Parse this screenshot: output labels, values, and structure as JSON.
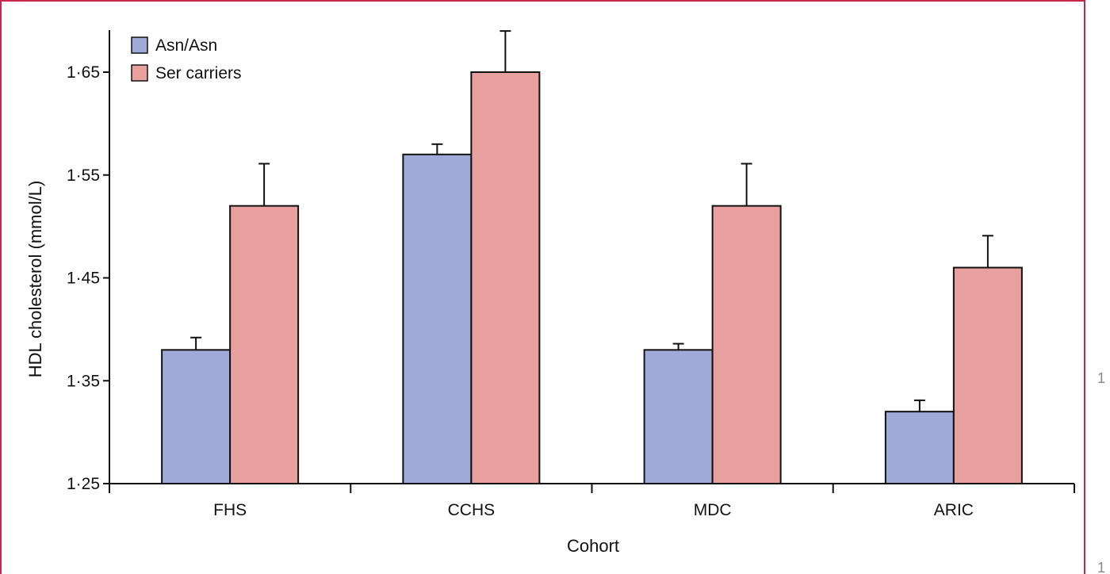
{
  "chart_data": {
    "type": "bar",
    "title": "",
    "xlabel": "Cohort",
    "ylabel": "HDL cholesterol (mmol/L)",
    "categories": [
      "FHS",
      "CCHS",
      "MDC",
      "ARIC"
    ],
    "ylim": [
      1.25,
      1.69
    ],
    "yticks": [
      1.25,
      1.35,
      1.45,
      1.55,
      1.65
    ],
    "ytick_labels": [
      "1·25",
      "1·35",
      "1·45",
      "1·55",
      "1·65"
    ],
    "grid": false,
    "legend_position": "top-left",
    "series": [
      {
        "name": "Asn/Asn",
        "color": "#a0aad6",
        "values": [
          1.38,
          1.57,
          1.38,
          1.32
        ],
        "error": [
          0.012,
          0.01,
          0.006,
          0.011
        ]
      },
      {
        "name": "Ser carriers",
        "color": "#e8a09e",
        "values": [
          1.52,
          1.65,
          1.52,
          1.46
        ],
        "error": [
          0.041,
          0.04,
          0.041,
          0.031
        ]
      }
    ]
  },
  "edge_marks": [
    "1",
    "1"
  ],
  "colors": {
    "frame": "#c8284b",
    "axis": "#111111",
    "bar_outline": "#111111"
  }
}
